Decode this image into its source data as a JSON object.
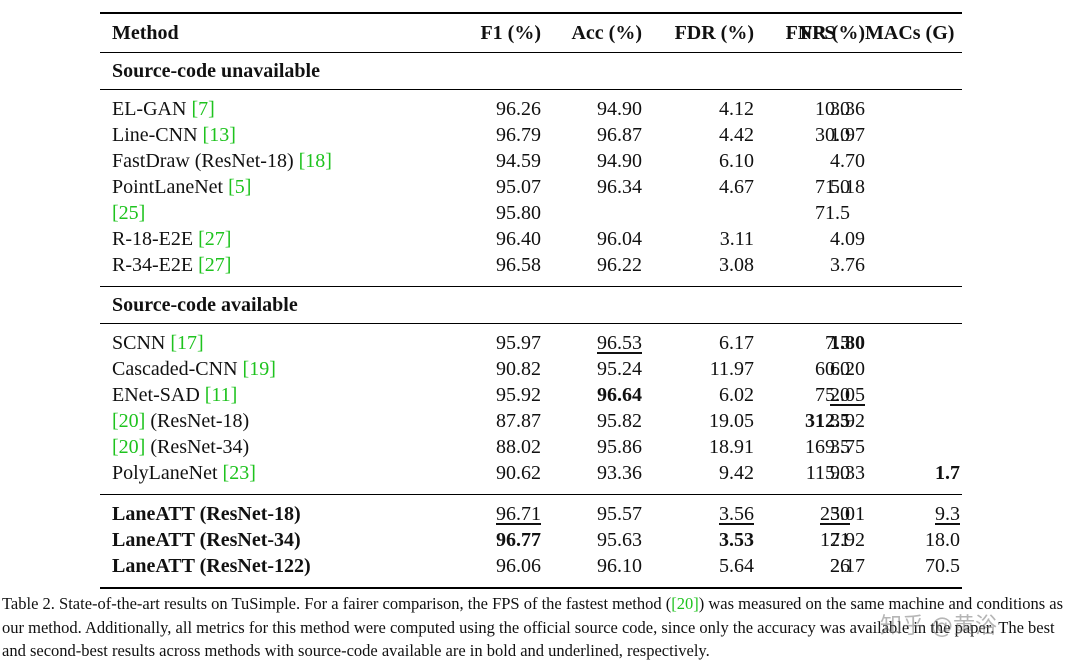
{
  "table": {
    "headers": [
      "Method",
      "F1 (%)",
      "Acc (%)",
      "FDR (%)",
      "FNR (%)",
      "FPS",
      "MACs (G)"
    ],
    "sections": [
      {
        "title": "Source-code unavailable",
        "rows": [
          {
            "method": "EL-GAN ",
            "ref": "[7]",
            "suffix": "",
            "f1": "96.26",
            "acc": "94.90",
            "fdr": "4.12",
            "fnr": "3.36",
            "fps": "10.0",
            "macs": ""
          },
          {
            "method": "Line-CNN ",
            "ref": "[13]",
            "suffix": "",
            "f1": "96.79",
            "acc": "96.87",
            "fdr": "4.42",
            "fnr": "1.97",
            "fps": "30.0",
            "macs": ""
          },
          {
            "method": "FastDraw (ResNet-18) ",
            "ref": "[18]",
            "suffix": "",
            "f1": "94.59",
            "acc": "94.90",
            "fdr": "6.10",
            "fnr": "4.70",
            "fps": "",
            "macs": ""
          },
          {
            "method": "PointLaneNet ",
            "ref": "[5]",
            "suffix": "",
            "f1": "95.07",
            "acc": "96.34",
            "fdr": "4.67",
            "fnr": "5.18",
            "fps": "71.0",
            "macs": ""
          },
          {
            "method": "",
            "ref": "[25]",
            "suffix": "",
            "f1": "95.80",
            "acc": "",
            "fdr": "",
            "fnr": "",
            "fps": "71.5",
            "macs": ""
          },
          {
            "method": "R-18-E2E ",
            "ref": "[27]",
            "suffix": "",
            "f1": "96.40",
            "acc": "96.04",
            "fdr": "3.11",
            "fnr": "4.09",
            "fps": "",
            "macs": ""
          },
          {
            "method": "R-34-E2E ",
            "ref": "[27]",
            "suffix": "",
            "f1": "96.58",
            "acc": "96.22",
            "fdr": "3.08",
            "fnr": "3.76",
            "fps": "",
            "macs": ""
          }
        ]
      },
      {
        "title": "Source-code available",
        "rows": [
          {
            "method": "SCNN ",
            "ref": "[17]",
            "suffix": "",
            "f1": "95.97",
            "acc": "96.53",
            "fdr": "6.17",
            "fnr": "1.80",
            "fps": "7.5",
            "macs": ""
          },
          {
            "method": "Cascaded-CNN ",
            "ref": "[19]",
            "suffix": "",
            "f1": "90.82",
            "acc": "95.24",
            "fdr": "11.97",
            "fnr": "6.20",
            "fps": "60.0",
            "macs": ""
          },
          {
            "method": "ENet-SAD ",
            "ref": "[11]",
            "suffix": "",
            "f1": "95.92",
            "acc": "96.64",
            "fdr": "6.02",
            "fnr": "2.05",
            "fps": "75.0",
            "macs": ""
          },
          {
            "method": "",
            "ref": "[20]",
            "suffix": " (ResNet-18)",
            "f1": "87.87",
            "acc": "95.82",
            "fdr": "19.05",
            "fnr": "3.92",
            "fps": "312.5",
            "macs": ""
          },
          {
            "method": "",
            "ref": "[20]",
            "suffix": " (ResNet-34)",
            "f1": "88.02",
            "acc": "95.86",
            "fdr": "18.91",
            "fnr": "3.75",
            "fps": "169.5",
            "macs": ""
          },
          {
            "method": "PolyLaneNet ",
            "ref": "[23]",
            "suffix": "",
            "f1": "90.62",
            "acc": "93.36",
            "fdr": "9.42",
            "fnr": "9.33",
            "fps": "115.0",
            "macs": "1.7"
          }
        ]
      },
      {
        "title": "",
        "rows": [
          {
            "method": "LaneATT (ResNet-18)",
            "ref": "",
            "suffix": "",
            "f1": "96.71",
            "acc": "95.57",
            "fdr": "3.56",
            "fnr": "3.01",
            "fps": "250",
            "macs": "9.3"
          },
          {
            "method": "LaneATT (ResNet-34)",
            "ref": "",
            "suffix": "",
            "f1": "96.77",
            "acc": "95.63",
            "fdr": "3.53",
            "fnr": "2.92",
            "fps": "171",
            "macs": "18.0"
          },
          {
            "method": "LaneATT (ResNet-122)",
            "ref": "",
            "suffix": "",
            "f1": "96.06",
            "acc": "96.10",
            "fdr": "5.64",
            "fnr": "2.17",
            "fps": "26",
            "macs": "70.5"
          }
        ]
      }
    ]
  },
  "caption": {
    "part1": "Table 2. State-of-the-art results on TuSimple. For a fairer comparison, the FPS of the fastest method (",
    "ref": "[20]",
    "part2": ") was measured on the same machine and conditions as our method. Additionally, all metrics for this method were computed using the official source code, since only the accuracy was available in the paper. The best and second-best results across methods with source-code available are in bold and underlined, respectively."
  },
  "watermark": "知乎 @黄浴"
}
